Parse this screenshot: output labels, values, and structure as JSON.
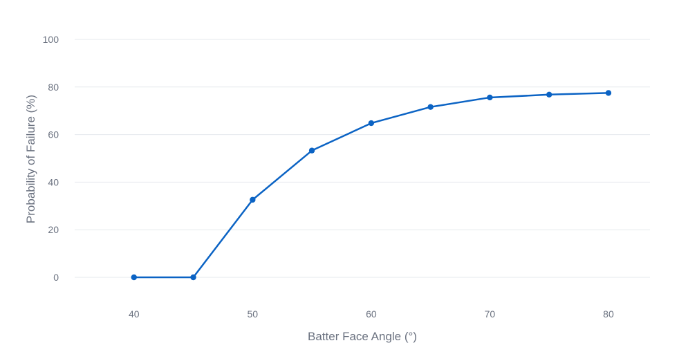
{
  "chart_data": {
    "type": "line",
    "title": "",
    "xlabel": "Batter Face Angle (°)",
    "ylabel": "Probability of Failure (%)",
    "xlim": [
      35,
      83.5
    ],
    "ylim": [
      -6,
      100
    ],
    "x_ticks": [
      40,
      50,
      60,
      70,
      80
    ],
    "y_ticks": [
      0,
      20,
      40,
      60,
      80,
      100
    ],
    "grid": "horizontal",
    "legend": "none",
    "series": [
      {
        "color": "#0b63c4",
        "points": [
          {
            "x": 40,
            "y": 0
          },
          {
            "x": 45,
            "y": 0
          },
          {
            "x": 50,
            "y": 32.6
          },
          {
            "x": 55,
            "y": 53.3
          },
          {
            "x": 60,
            "y": 64.8
          },
          {
            "x": 65,
            "y": 71.6
          },
          {
            "x": 70,
            "y": 75.6
          },
          {
            "x": 75,
            "y": 76.8
          },
          {
            "x": 80,
            "y": 77.5
          }
        ]
      }
    ]
  }
}
